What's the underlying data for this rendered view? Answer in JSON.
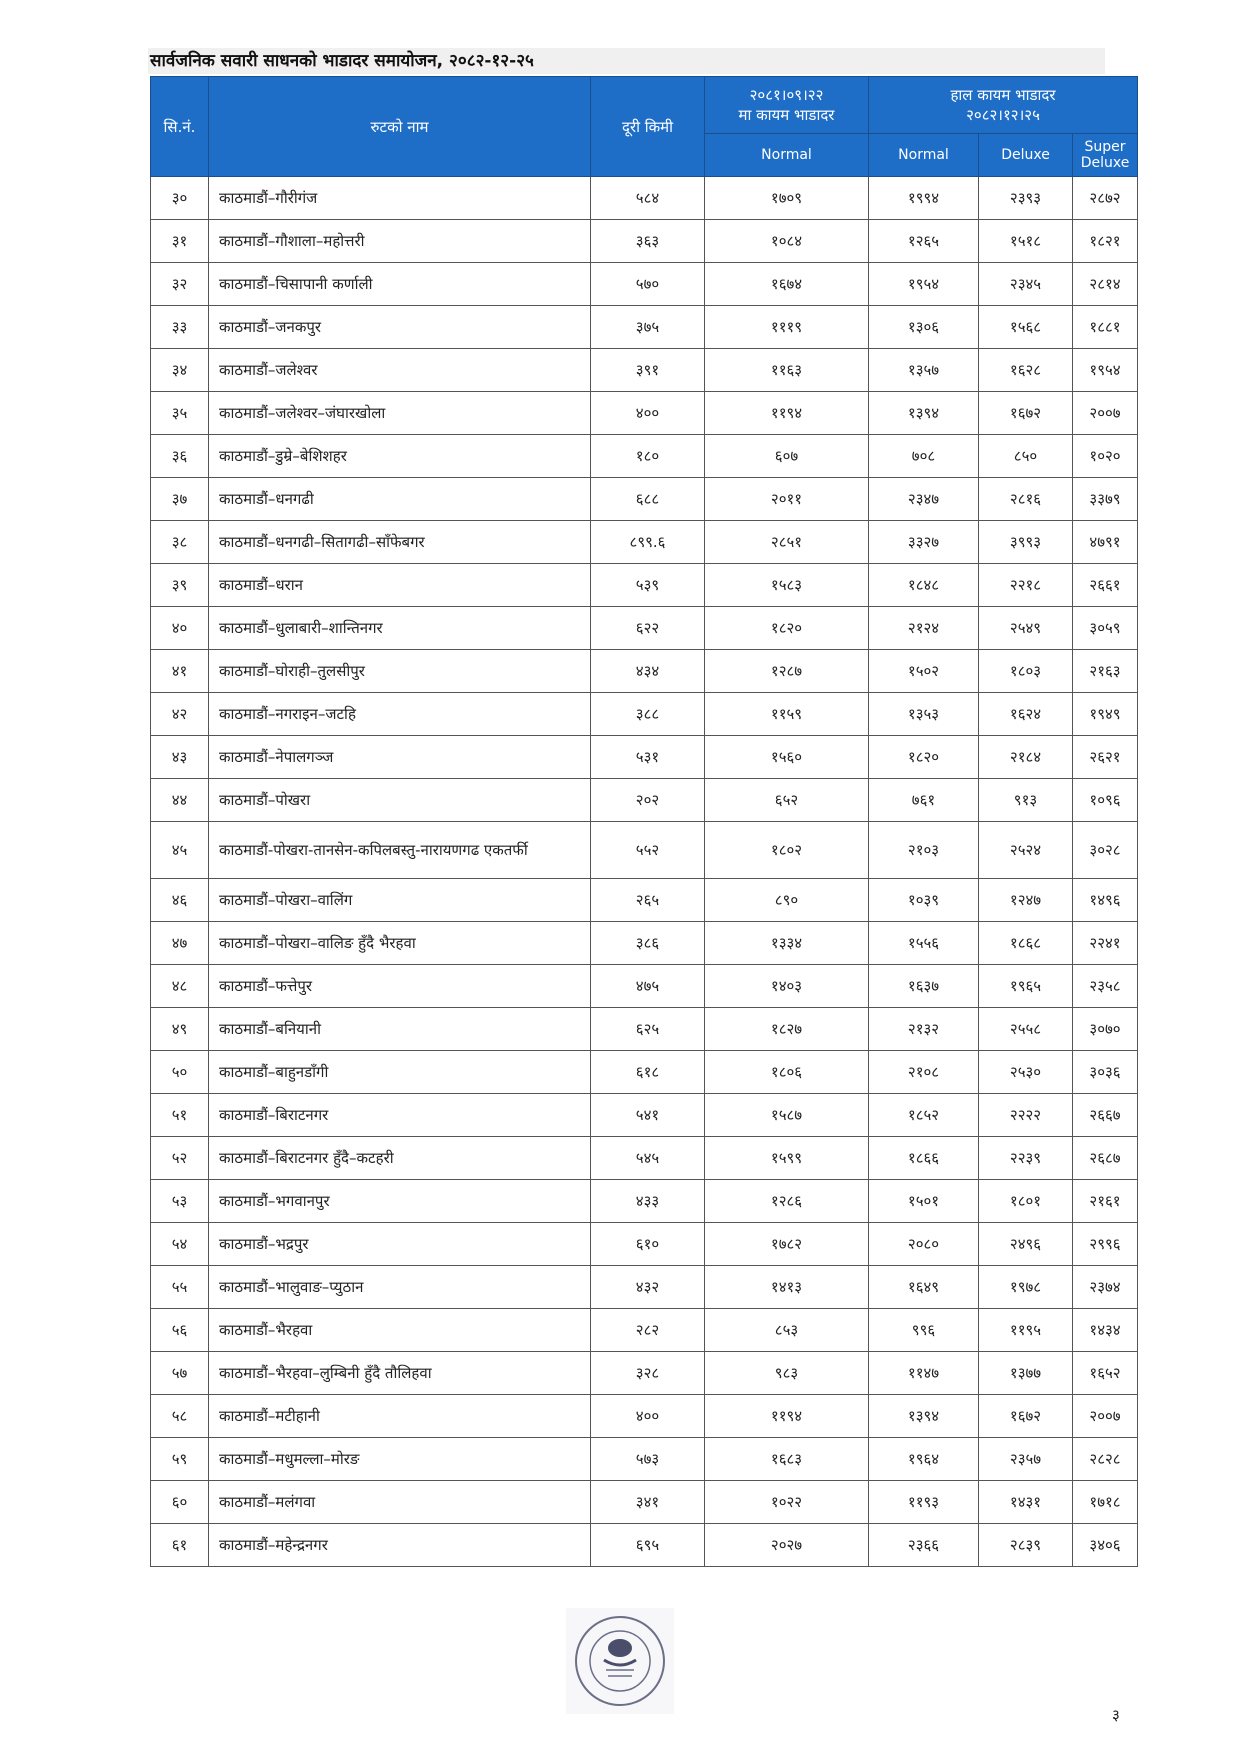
{
  "title": "सार्वजनिक सवारी साधनको भाडादर समायोजन, २०८२-१२-२५",
  "header": {
    "sn": "सि.नं.",
    "route": "रुटको नाम",
    "distance": "दूरी किमी",
    "old_rate_date": "२०८१।०९।२२",
    "old_rate_label": "मा कायम भाडादर",
    "new_rate_label": "हाल कायम भाडादर",
    "new_rate_date": "२०८२।१२।२५",
    "normal_old": "Normal",
    "normal": "Normal",
    "deluxe": "Deluxe",
    "super_deluxe": "Super Deluxe"
  },
  "colors": {
    "header_bg": "#1e6ec8",
    "header_text": "#ffffff"
  },
  "rows": [
    {
      "sn": "३०",
      "route": "काठमाडौं–गौरीगंज",
      "km": "५८४",
      "old": "१७०९",
      "normal": "१९९४",
      "deluxe": "२३९३",
      "super": "२८७२"
    },
    {
      "sn": "३१",
      "route": "काठमाडौं–गौशाला–महोत्तरी",
      "km": "३६३",
      "old": "१०८४",
      "normal": "१२६५",
      "deluxe": "१५१८",
      "super": "१८२१"
    },
    {
      "sn": "३२",
      "route": "काठमाडौं–चिसापानी कर्णाली",
      "km": "५७०",
      "old": "१६७४",
      "normal": "१९५४",
      "deluxe": "२३४५",
      "super": "२८१४"
    },
    {
      "sn": "३३",
      "route": "काठमाडौं–जनकपुर",
      "km": "३७५",
      "old": "१११९",
      "normal": "१३०६",
      "deluxe": "१५६८",
      "super": "१८८१"
    },
    {
      "sn": "३४",
      "route": "काठमाडौं–जलेश्वर",
      "km": "३९१",
      "old": "११६३",
      "normal": "१३५७",
      "deluxe": "१६२८",
      "super": "१९५४"
    },
    {
      "sn": "३५",
      "route": "काठमाडौं–जलेश्वर–जंघारखोला",
      "km": "४००",
      "old": "११९४",
      "normal": "१३९४",
      "deluxe": "१६७२",
      "super": "२००७"
    },
    {
      "sn": "३६",
      "route": "काठमाडौं–डुम्रे–बेशिशहर",
      "km": "१८०",
      "old": "६०७",
      "normal": "७०८",
      "deluxe": "८५०",
      "super": "१०२०"
    },
    {
      "sn": "३७",
      "route": "काठमाडौं–धनगढी",
      "km": "६८८",
      "old": "२०११",
      "normal": "२३४७",
      "deluxe": "२८१६",
      "super": "३३७९"
    },
    {
      "sn": "३८",
      "route": "काठमाडौं–धनगढी–सितागढी–साँफेबगर",
      "km": "८९९.६",
      "old": "२८५१",
      "normal": "३३२७",
      "deluxe": "३९९३",
      "super": "४७९१"
    },
    {
      "sn": "३९",
      "route": "काठमाडौं–धरान",
      "km": "५३९",
      "old": "१५८३",
      "normal": "१८४८",
      "deluxe": "२२१८",
      "super": "२६६१"
    },
    {
      "sn": "४०",
      "route": "काठमाडौं–धुलाबारी–शान्तिनगर",
      "km": "६२२",
      "old": "१८२०",
      "normal": "२१२४",
      "deluxe": "२५४९",
      "super": "३०५९"
    },
    {
      "sn": "४१",
      "route": "काठमाडौं–घोराही–तुलसीपुर",
      "km": "४३४",
      "old": "१२८७",
      "normal": "१५०२",
      "deluxe": "१८०३",
      "super": "२१६३"
    },
    {
      "sn": "४२",
      "route": "काठमाडौं–नगराइन–जटहि",
      "km": "३८८",
      "old": "११५९",
      "normal": "१३५३",
      "deluxe": "१६२४",
      "super": "१९४९"
    },
    {
      "sn": "४३",
      "route": "काठमाडौं–नेपालगञ्ज",
      "km": "५३१",
      "old": "१५६०",
      "normal": "१८२०",
      "deluxe": "२१८४",
      "super": "२६२१"
    },
    {
      "sn": "४४",
      "route": "काठमाडौं–पोखरा",
      "km": "२०२",
      "old": "६५२",
      "normal": "७६१",
      "deluxe": "९१३",
      "super": "१०९६"
    },
    {
      "sn": "४५",
      "route": "काठमाडौं-पोखरा-तानसेन-कपिलबस्तु-नारायणगढ एकतर्फी",
      "km": "५५२",
      "old": "१८०२",
      "normal": "२१०३",
      "deluxe": "२५२४",
      "super": "३०२८"
    },
    {
      "sn": "४६",
      "route": "काठमाडौं–पोखरा–वालिंग",
      "km": "२६५",
      "old": "८९०",
      "normal": "१०३९",
      "deluxe": "१२४७",
      "super": "१४९६"
    },
    {
      "sn": "४७",
      "route": "काठमाडौं–पोखरा–वालिङ हुँदै भैरहवा",
      "km": "३८६",
      "old": "१३३४",
      "normal": "१५५६",
      "deluxe": "१८६८",
      "super": "२२४१"
    },
    {
      "sn": "४८",
      "route": "काठमाडौं–फत्तेपुर",
      "km": "४७५",
      "old": "१४०३",
      "normal": "१६३७",
      "deluxe": "१९६५",
      "super": "२३५८"
    },
    {
      "sn": "४९",
      "route": "काठमाडौं–बनियानी",
      "km": "६२५",
      "old": "१८२७",
      "normal": "२१३२",
      "deluxe": "२५५८",
      "super": "३०७०"
    },
    {
      "sn": "५०",
      "route": "काठमाडौं–बाहुनडाँगी",
      "km": "६१८",
      "old": "१८०६",
      "normal": "२१०८",
      "deluxe": "२५३०",
      "super": "३०३६"
    },
    {
      "sn": "५१",
      "route": "काठमाडौं–बिराटनगर",
      "km": "५४१",
      "old": "१५८७",
      "normal": "१८५२",
      "deluxe": "२२२२",
      "super": "२६६७"
    },
    {
      "sn": "५२",
      "route": "काठमाडौं–बिराटनगर हुँदै–कटहरी",
      "km": "५४५",
      "old": "१५९९",
      "normal": "१८६६",
      "deluxe": "२२३९",
      "super": "२६८७"
    },
    {
      "sn": "५३",
      "route": "काठमाडौं–भगवानपुर",
      "km": "४३३",
      "old": "१२८६",
      "normal": "१५०१",
      "deluxe": "१८०१",
      "super": "२१६१"
    },
    {
      "sn": "५४",
      "route": "काठमाडौं–भद्रपुर",
      "km": "६१०",
      "old": "१७८२",
      "normal": "२०८०",
      "deluxe": "२४९६",
      "super": "२९९६"
    },
    {
      "sn": "५५",
      "route": "काठमाडौं–भालुवाङ–प्युठान",
      "km": "४३२",
      "old": "१४१३",
      "normal": "१६४९",
      "deluxe": "१९७८",
      "super": "२३७४"
    },
    {
      "sn": "५६",
      "route": "काठमाडौं–भैरहवा",
      "km": "२८२",
      "old": "८५३",
      "normal": "९९६",
      "deluxe": "११९५",
      "super": "१४३४"
    },
    {
      "sn": "५७",
      "route": "काठमाडौं–भैरहवा–लुम्बिनी हुँदै तौलिहवा",
      "km": "३२८",
      "old": "९८३",
      "normal": "११४७",
      "deluxe": "१३७७",
      "super": "१६५२"
    },
    {
      "sn": "५८",
      "route": "काठमाडौं–मटीहानी",
      "km": "४००",
      "old": "११९४",
      "normal": "१३९४",
      "deluxe": "१६७२",
      "super": "२००७"
    },
    {
      "sn": "५९",
      "route": "काठमाडौं–मधुमल्ला–मोरङ",
      "km": "५७३",
      "old": "१६८३",
      "normal": "१९६४",
      "deluxe": "२३५७",
      "super": "२८२८"
    },
    {
      "sn": "६०",
      "route": "काठमाडौं–मलंगवा",
      "km": "३४१",
      "old": "१०२२",
      "normal": "११९३",
      "deluxe": "१४३१",
      "super": "१७१८"
    },
    {
      "sn": "६१",
      "route": "काठमाडौं–महेन्द्रनगर",
      "km": "६९५",
      "old": "२०२७",
      "normal": "२३६६",
      "deluxe": "२८३९",
      "super": "३४०६"
    }
  ],
  "page_number": "३"
}
